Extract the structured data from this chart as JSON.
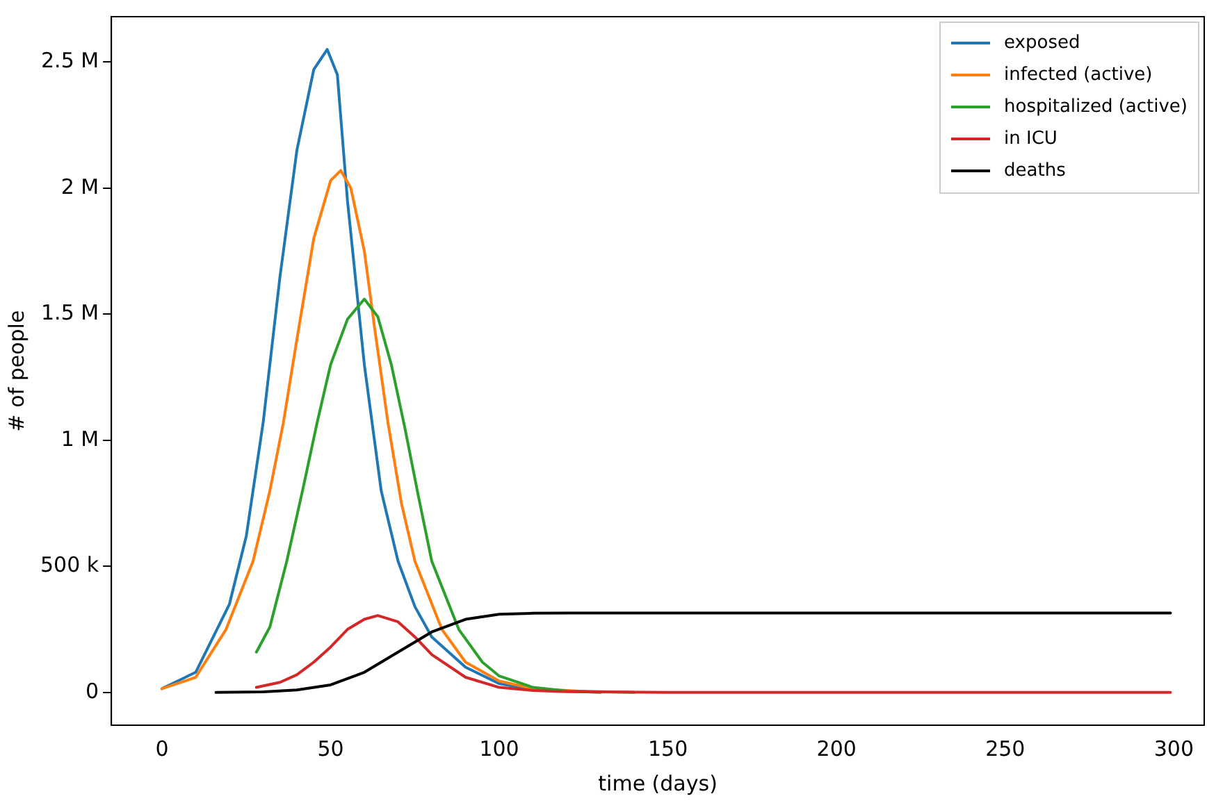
{
  "chart_data": {
    "type": "line",
    "xlabel": "time (days)",
    "ylabel": "# of people",
    "xlim": [
      -15,
      309
    ],
    "ylim": [
      -130000,
      2680000
    ],
    "xticks": [
      0,
      50,
      100,
      150,
      200,
      250,
      300
    ],
    "yticks": [
      {
        "value": 0,
        "label": "0"
      },
      {
        "value": 500000,
        "label": "500 k"
      },
      {
        "value": 1000000,
        "label": "1 M"
      },
      {
        "value": 1500000,
        "label": "1.5 M"
      },
      {
        "value": 2000000,
        "label": "2 M"
      },
      {
        "value": 2500000,
        "label": "2.5 M"
      }
    ],
    "grid": false,
    "legend": "top right",
    "marker": "none",
    "line_style": "solid",
    "series": [
      {
        "name": "exposed",
        "color": "#1f77b4",
        "x": [
          0,
          10,
          20,
          25,
          30,
          35,
          40,
          45,
          49,
          52,
          55,
          60,
          65,
          70,
          75,
          80,
          90,
          100,
          110,
          130
        ],
        "values": [
          15000,
          80000,
          350000,
          620000,
          1070000,
          1650000,
          2150000,
          2470000,
          2550000,
          2450000,
          1950000,
          1300000,
          800000,
          520000,
          340000,
          220000,
          100000,
          35000,
          10000,
          0
        ]
      },
      {
        "name": "infected (active)",
        "color": "#ff7f0e",
        "x": [
          0,
          10,
          19,
          27,
          32,
          36,
          40,
          45,
          50,
          53,
          56,
          60,
          63,
          67,
          71,
          75,
          83,
          90,
          100,
          110,
          130
        ],
        "values": [
          15000,
          60000,
          250000,
          520000,
          800000,
          1070000,
          1400000,
          1800000,
          2030000,
          2070000,
          2000000,
          1750000,
          1450000,
          1070000,
          750000,
          520000,
          250000,
          120000,
          45000,
          15000,
          0
        ]
      },
      {
        "name": "hospitalized (active)",
        "color": "#2ca02c",
        "x": [
          28,
          32,
          37,
          42,
          46,
          50,
          55,
          60,
          64,
          68,
          72,
          76,
          80,
          88,
          95,
          100,
          110,
          120,
          140
        ],
        "values": [
          160000,
          260000,
          520000,
          820000,
          1070000,
          1300000,
          1480000,
          1560000,
          1490000,
          1300000,
          1050000,
          780000,
          520000,
          250000,
          120000,
          65000,
          20000,
          6000,
          0
        ]
      },
      {
        "name": "in ICU",
        "color": "#d62728",
        "x": [
          28,
          35,
          40,
          45,
          50,
          55,
          60,
          64,
          70,
          75,
          80,
          90,
          100,
          110,
          120,
          150,
          200,
          299
        ],
        "values": [
          20000,
          40000,
          70000,
          120000,
          180000,
          250000,
          290000,
          305000,
          280000,
          220000,
          150000,
          60000,
          20000,
          8000,
          3000,
          0,
          0,
          0
        ]
      },
      {
        "name": "deaths",
        "color": "#000000",
        "x": [
          16,
          30,
          40,
          50,
          60,
          70,
          80,
          90,
          100,
          110,
          120,
          150,
          200,
          299
        ],
        "values": [
          0,
          2000,
          10000,
          30000,
          80000,
          160000,
          240000,
          290000,
          310000,
          314000,
          315000,
          315000,
          315000,
          315000
        ]
      }
    ]
  }
}
